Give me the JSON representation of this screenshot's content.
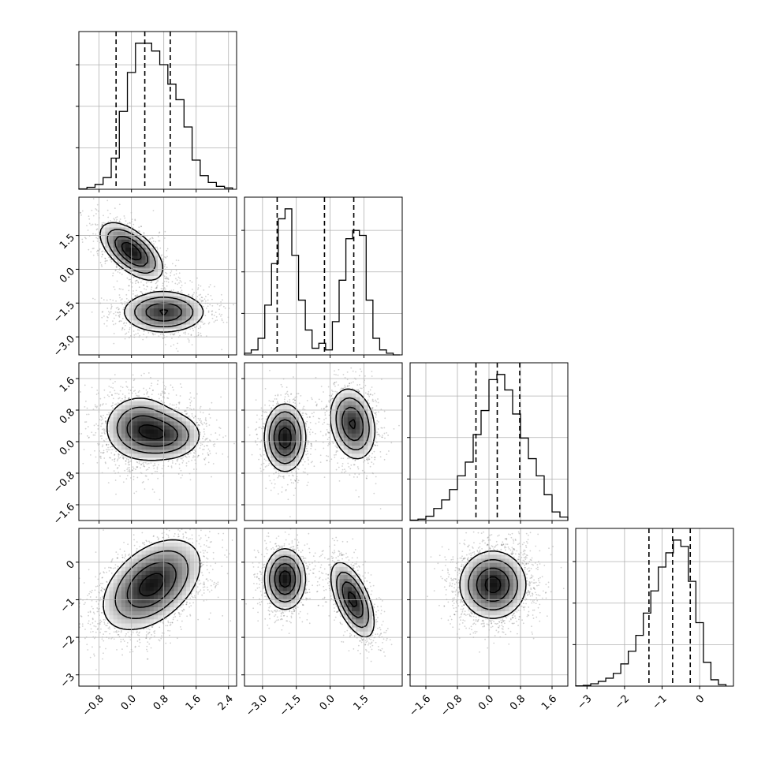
{
  "chart_data": {
    "type": "corner",
    "parameters": [
      {
        "xlim": [
          -1.3,
          2.6
        ],
        "ticks": [
          "−0.8",
          "0.0",
          "0.8",
          "1.6",
          "2.4"
        ],
        "tick_values": [
          -0.8,
          0.0,
          0.8,
          1.6,
          2.4
        ]
      },
      {
        "xlim": [
          -3.8,
          3.2
        ],
        "ticks": [
          "−3.0",
          "−1.5",
          "0.0",
          "1.5"
        ],
        "tick_values": [
          -3.0,
          -1.5,
          0.0,
          1.5
        ]
      },
      {
        "xlim": [
          -2.0,
          2.0
        ],
        "ticks": [
          "−1.6",
          "−0.8",
          "0.0",
          "0.8",
          "1.6"
        ],
        "tick_values": [
          -1.6,
          -0.8,
          0.0,
          0.8,
          1.6
        ]
      },
      {
        "xlim": [
          -3.3,
          0.9
        ],
        "ticks": [
          "−3",
          "−2",
          "−1",
          "0"
        ],
        "tick_values": [
          -3,
          -2,
          -1,
          0
        ]
      }
    ],
    "grid": true,
    "histograms": [
      {
        "parameter": 0,
        "edges": [
          -1.3,
          -1.1,
          -0.9,
          -0.7,
          -0.5,
          -0.3,
          -0.1,
          0.1,
          0.3,
          0.5,
          0.7,
          0.9,
          1.1,
          1.3,
          1.5,
          1.7,
          1.9,
          2.1,
          2.3,
          2.5
        ],
        "counts": [
          0.2,
          1,
          2.5,
          6,
          16,
          40,
          60,
          75,
          75,
          71,
          64,
          54,
          46,
          32,
          15,
          7,
          3.5,
          1.5,
          0.7
        ],
        "quantiles": [
          -0.38,
          0.33,
          0.96
        ]
      },
      {
        "parameter": 1,
        "edges": [
          -3.8,
          -3.5,
          -3.2,
          -2.9,
          -2.6,
          -2.3,
          -2.0,
          -1.7,
          -1.4,
          -1.1,
          -0.8,
          -0.5,
          -0.2,
          0.1,
          0.4,
          0.7,
          1.0,
          1.3,
          1.6,
          1.9,
          2.2,
          2.5,
          2.8,
          3.1
        ],
        "counts": [
          1,
          3,
          10,
          30,
          55,
          82,
          88,
          60,
          33,
          15,
          4,
          7,
          3,
          20,
          45,
          70,
          75,
          72,
          33,
          10,
          3,
          1,
          0
        ],
        "quantiles": [
          -2.35,
          -0.25,
          1.05
        ]
      },
      {
        "parameter": 2,
        "edges": [
          -2.0,
          -1.8,
          -1.6,
          -1.4,
          -1.2,
          -1.0,
          -0.8,
          -0.6,
          -0.4,
          -0.2,
          0.0,
          0.2,
          0.4,
          0.6,
          0.8,
          1.0,
          1.2,
          1.4,
          1.6,
          1.8,
          2.0
        ],
        "counts": [
          0.2,
          0.8,
          2.5,
          7,
          12,
          18,
          26,
          34,
          50,
          64,
          82,
          85,
          76,
          62,
          48,
          36,
          26,
          15,
          5,
          2
        ],
        "quantiles": [
          -0.33,
          0.21,
          0.78
        ]
      },
      {
        "parameter": 3,
        "edges": [
          -3.3,
          -3.1,
          -2.9,
          -2.7,
          -2.5,
          -2.3,
          -2.1,
          -1.9,
          -1.7,
          -1.5,
          -1.3,
          -1.1,
          -0.9,
          -0.7,
          -0.5,
          -0.3,
          -0.1,
          0.1,
          0.3,
          0.5,
          0.7
        ],
        "counts": [
          0.2,
          0.5,
          1.5,
          3,
          5,
          8,
          14,
          22,
          32,
          46,
          60,
          75,
          84,
          92,
          88,
          66,
          40,
          15,
          4,
          1
        ],
        "quantiles": [
          -1.35,
          -0.72,
          -0.25
        ]
      }
    ],
    "pairs": [
      {
        "x_param": 0,
        "y_param": 1,
        "components": [
          {
            "mx": 0.0,
            "my": 0.8,
            "sx": 0.38,
            "sy": 0.62,
            "rho": -0.6,
            "w": 0.5
          },
          {
            "mx": 0.8,
            "my": -1.9,
            "sx": 0.5,
            "sy": 0.45,
            "rho": 0.0,
            "w": 0.5
          }
        ]
      },
      {
        "x_param": 0,
        "y_param": 2,
        "components": [
          {
            "mx": 0.2,
            "my": 0.35,
            "sx": 0.45,
            "sy": 0.42,
            "rho": 0.0,
            "w": 0.6
          },
          {
            "mx": 0.9,
            "my": 0.15,
            "sx": 0.45,
            "sy": 0.32,
            "rho": 0.0,
            "w": 0.4
          }
        ]
      },
      {
        "x_param": 0,
        "y_param": 3,
        "components": [
          {
            "mx": 0.5,
            "my": -0.6,
            "sx": 0.6,
            "sy": 0.6,
            "rho": 0.45,
            "w": 1.0
          }
        ]
      },
      {
        "x_param": 1,
        "y_param": 2,
        "components": [
          {
            "mx": -2.0,
            "my": 0.1,
            "sx": 0.45,
            "sy": 0.42,
            "rho": 0.0,
            "w": 0.5
          },
          {
            "mx": 1.0,
            "my": 0.45,
            "sx": 0.5,
            "sy": 0.45,
            "rho": -0.2,
            "w": 0.5
          }
        ]
      },
      {
        "x_param": 1,
        "y_param": 3,
        "components": [
          {
            "mx": -2.0,
            "my": -0.45,
            "sx": 0.45,
            "sy": 0.4,
            "rho": 0.0,
            "w": 0.5
          },
          {
            "mx": 1.0,
            "my": -1.0,
            "sx": 0.48,
            "sy": 0.5,
            "rho": -0.6,
            "w": 0.5
          }
        ]
      },
      {
        "x_param": 2,
        "y_param": 3,
        "components": [
          {
            "mx": 0.1,
            "my": -0.6,
            "sx": 0.42,
            "sy": 0.45,
            "rho": 0.0,
            "w": 1.0
          }
        ]
      }
    ]
  }
}
